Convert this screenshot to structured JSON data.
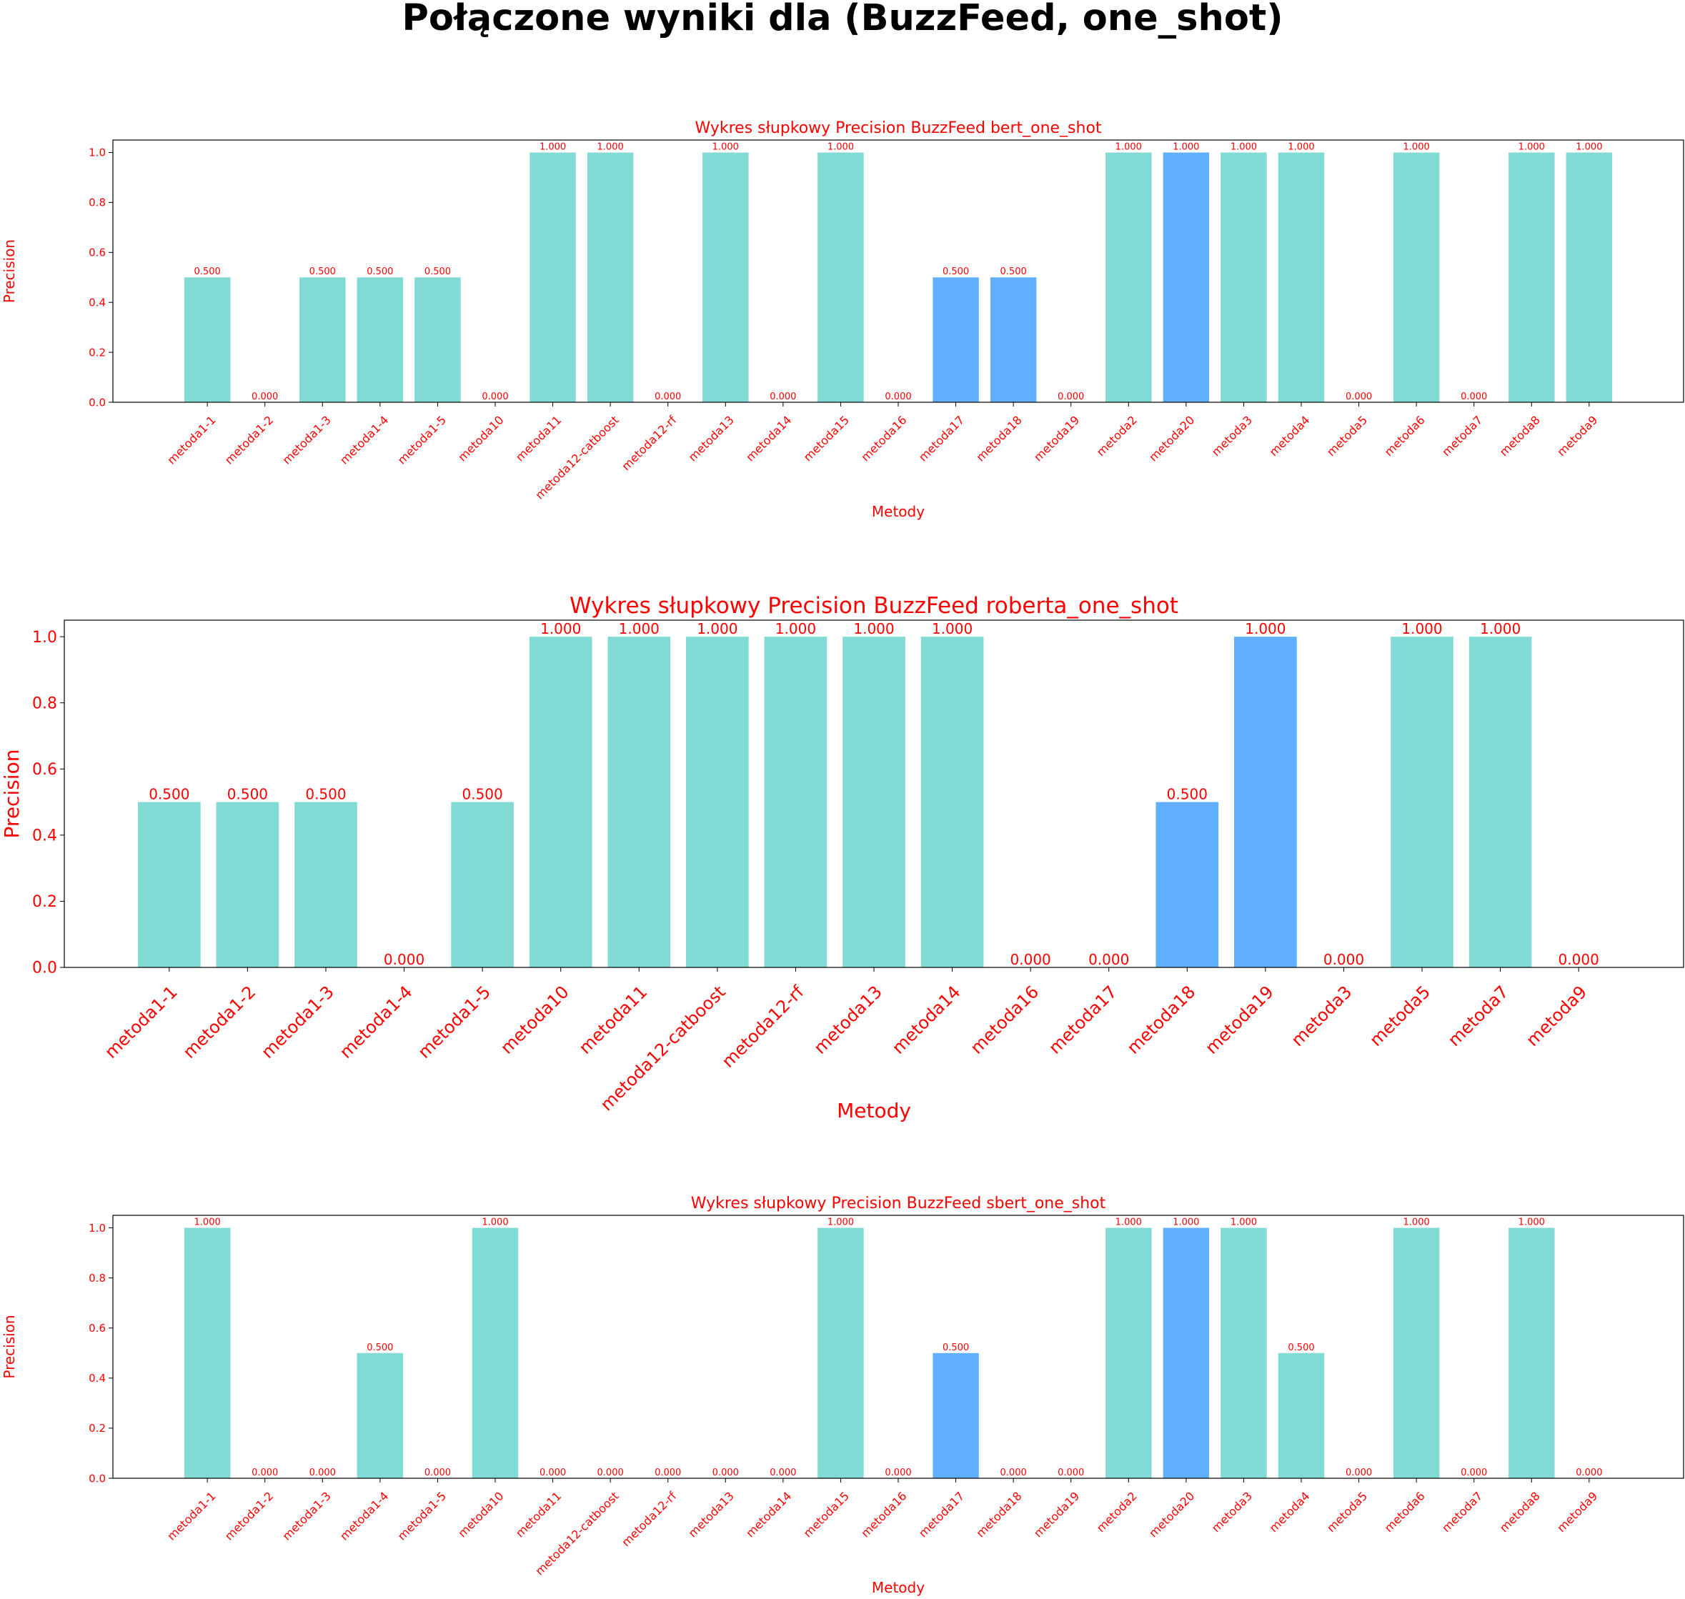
{
  "page": {
    "suptitle": "Połączone wyniki dla (BuzzFeed, one_shot)"
  },
  "colors": {
    "bar_default": "#82dad5",
    "bar_highlight": "#61afff",
    "label_text": "#ff0000",
    "axis": "#000000"
  },
  "chart_data": [
    {
      "type": "bar",
      "title": "Wykres słupkowy Precision BuzzFeed bert_one_shot",
      "xlabel": "Metody",
      "ylabel": "Precision",
      "ylim": [
        0,
        1.05
      ],
      "yticks": [
        "0.0",
        "0.2",
        "0.4",
        "0.6",
        "0.8",
        "1.0"
      ],
      "grid": false,
      "categories": [
        "metoda1-1",
        "metoda1-2",
        "metoda1-3",
        "metoda1-4",
        "metoda1-5",
        "metoda10",
        "metoda11",
        "metoda12-catboost",
        "metoda12-rf",
        "metoda13",
        "metoda14",
        "metoda15",
        "metoda16",
        "metoda17",
        "metoda18",
        "metoda19",
        "metoda2",
        "metoda20",
        "metoda3",
        "metoda4",
        "metoda5",
        "metoda6",
        "metoda7",
        "metoda8",
        "metoda9"
      ],
      "values": [
        0.5,
        0.0,
        0.5,
        0.5,
        0.5,
        0.0,
        1.0,
        1.0,
        0.0,
        1.0,
        0.0,
        1.0,
        0.0,
        0.5,
        0.5,
        0.0,
        1.0,
        1.0,
        1.0,
        1.0,
        0.0,
        1.0,
        0.0,
        1.0,
        1.0
      ],
      "value_labels": [
        "0.500",
        "0.000",
        "0.500",
        "0.500",
        "0.500",
        "0.000",
        "1.000",
        "1.000",
        "0.000",
        "1.000",
        "0.000",
        "1.000",
        "0.000",
        "0.500",
        "0.500",
        "0.000",
        "1.000",
        "1.000",
        "1.000",
        "1.000",
        "0.000",
        "1.000",
        "0.000",
        "1.000",
        "1.000"
      ],
      "highlighted": [
        "metoda17",
        "metoda18",
        "metoda20"
      ]
    },
    {
      "type": "bar",
      "title": "Wykres słupkowy Precision BuzzFeed roberta_one_shot",
      "xlabel": "Metody",
      "ylabel": "Precision",
      "ylim": [
        0,
        1.05
      ],
      "yticks": [
        "0.0",
        "0.2",
        "0.4",
        "0.6",
        "0.8",
        "1.0"
      ],
      "grid": false,
      "categories": [
        "metoda1-1",
        "metoda1-2",
        "metoda1-3",
        "metoda1-4",
        "metoda1-5",
        "metoda10",
        "metoda11",
        "metoda12-catboost",
        "metoda12-rf",
        "metoda13",
        "metoda14",
        "metoda16",
        "metoda17",
        "metoda18",
        "metoda19",
        "metoda3",
        "metoda5",
        "metoda7",
        "metoda9"
      ],
      "values": [
        0.5,
        0.5,
        0.5,
        0.0,
        0.5,
        1.0,
        1.0,
        1.0,
        1.0,
        1.0,
        1.0,
        0.0,
        0.0,
        0.5,
        1.0,
        0.0,
        1.0,
        1.0,
        0.0
      ],
      "value_labels": [
        "0.500",
        "0.500",
        "0.500",
        "0.000",
        "0.500",
        "1.000",
        "1.000",
        "1.000",
        "1.000",
        "1.000",
        "1.000",
        "0.000",
        "0.000",
        "0.500",
        "1.000",
        "0.000",
        "1.000",
        "1.000",
        "0.000"
      ],
      "highlighted": [
        "metoda18",
        "metoda19"
      ]
    },
    {
      "type": "bar",
      "title": "Wykres słupkowy Precision BuzzFeed sbert_one_shot",
      "xlabel": "Metody",
      "ylabel": "Precision",
      "ylim": [
        0,
        1.05
      ],
      "yticks": [
        "0.0",
        "0.2",
        "0.4",
        "0.6",
        "0.8",
        "1.0"
      ],
      "grid": false,
      "categories": [
        "metoda1-1",
        "metoda1-2",
        "metoda1-3",
        "metoda1-4",
        "metoda1-5",
        "metoda10",
        "metoda11",
        "metoda12-catboost",
        "metoda12-rf",
        "metoda13",
        "metoda14",
        "metoda15",
        "metoda16",
        "metoda17",
        "metoda18",
        "metoda19",
        "metoda2",
        "metoda20",
        "metoda3",
        "metoda4",
        "metoda5",
        "metoda6",
        "metoda7",
        "metoda8",
        "metoda9"
      ],
      "values": [
        1.0,
        0.0,
        0.0,
        0.5,
        0.0,
        1.0,
        0.0,
        0.0,
        0.0,
        0.0,
        0.0,
        1.0,
        0.0,
        0.5,
        0.0,
        0.0,
        1.0,
        1.0,
        1.0,
        0.5,
        0.0,
        1.0,
        0.0,
        1.0,
        0.0
      ],
      "value_labels": [
        "1.000",
        "0.000",
        "0.000",
        "0.500",
        "0.000",
        "1.000",
        "0.000",
        "0.000",
        "0.000",
        "0.000",
        "0.000",
        "1.000",
        "0.000",
        "0.500",
        "0.000",
        "0.000",
        "1.000",
        "1.000",
        "1.000",
        "0.500",
        "0.000",
        "1.000",
        "0.000",
        "1.000",
        "0.000"
      ],
      "highlighted": [
        "metoda17",
        "metoda20"
      ]
    }
  ]
}
